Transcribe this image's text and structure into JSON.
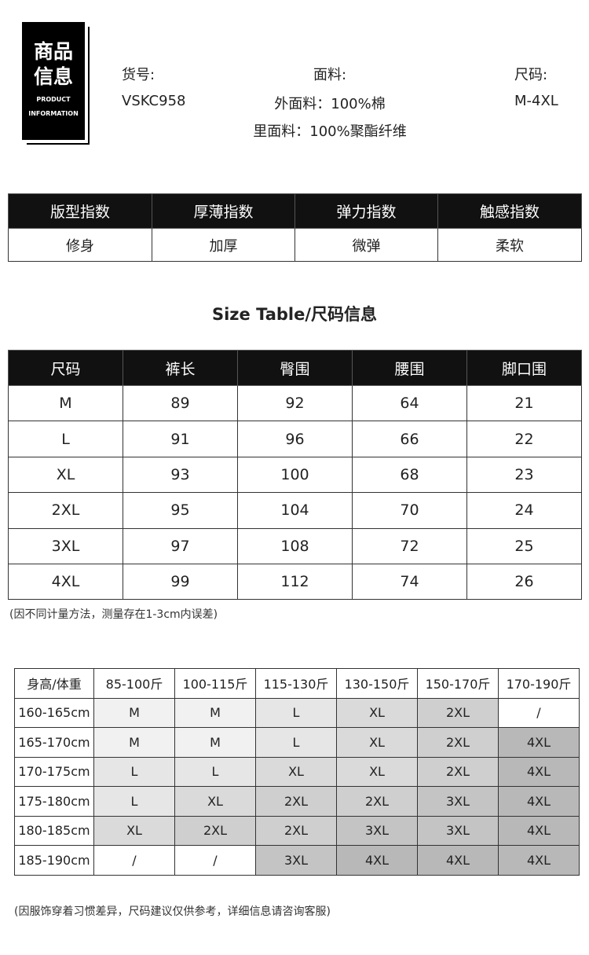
{
  "header": {
    "badge": [
      "商品",
      "信息",
      "PRODUCT",
      "INFORMATION"
    ],
    "item_no": {
      "label": "货号:",
      "value": "VSKC958"
    },
    "fabric": {
      "label": "面料:",
      "values": [
        "外面料：100%棉",
        "里面料：100%聚酯纤维"
      ]
    },
    "size": {
      "label": "尺码:",
      "value": "M-4XL"
    }
  },
  "index_table": {
    "header": [
      "版型指数",
      "厚薄指数",
      "弹力指数",
      "触感指数"
    ],
    "values": [
      "修身",
      "加厚",
      "微弹",
      "柔软"
    ]
  },
  "size_table": {
    "title": "Size Table/尺码信息",
    "header": [
      "尺码",
      "裤长",
      "臀围",
      "腰围",
      "脚口围"
    ],
    "rows": [
      [
        "M",
        89,
        92,
        64,
        21
      ],
      [
        "L",
        91,
        96,
        66,
        22
      ],
      [
        "XL",
        93,
        100,
        68,
        23
      ],
      [
        "2XL",
        95,
        104,
        70,
        24
      ],
      [
        "3XL",
        97,
        108,
        72,
        25
      ],
      [
        "4XL",
        99,
        112,
        74,
        26
      ]
    ],
    "note": "(因不同计量方法，测量存在1-3cm内误差)"
  },
  "recommend_table": {
    "header": [
      "身高/体重",
      "85-100斤",
      "100-115斤",
      "115-130斤",
      "130-150斤",
      "150-170斤",
      "170-190斤"
    ],
    "rows": [
      [
        "160-165cm",
        "M",
        "M",
        "L",
        "XL",
        "2XL",
        "/"
      ],
      [
        "165-170cm",
        "M",
        "M",
        "L",
        "XL",
        "2XL",
        "4XL"
      ],
      [
        "170-175cm",
        "L",
        "L",
        "XL",
        "XL",
        "2XL",
        "4XL"
      ],
      [
        "175-180cm",
        "L",
        "XL",
        "2XL",
        "2XL",
        "3XL",
        "4XL"
      ],
      [
        "180-185cm",
        "XL",
        "2XL",
        "2XL",
        "3XL",
        "3XL",
        "4XL"
      ],
      [
        "185-190cm",
        "/",
        "/",
        "3XL",
        "4XL",
        "4XL",
        "4XL"
      ]
    ],
    "note": "(因服饰穿着习惯差异，尺码建议仅供参考，详细信息请咨询客服)"
  }
}
